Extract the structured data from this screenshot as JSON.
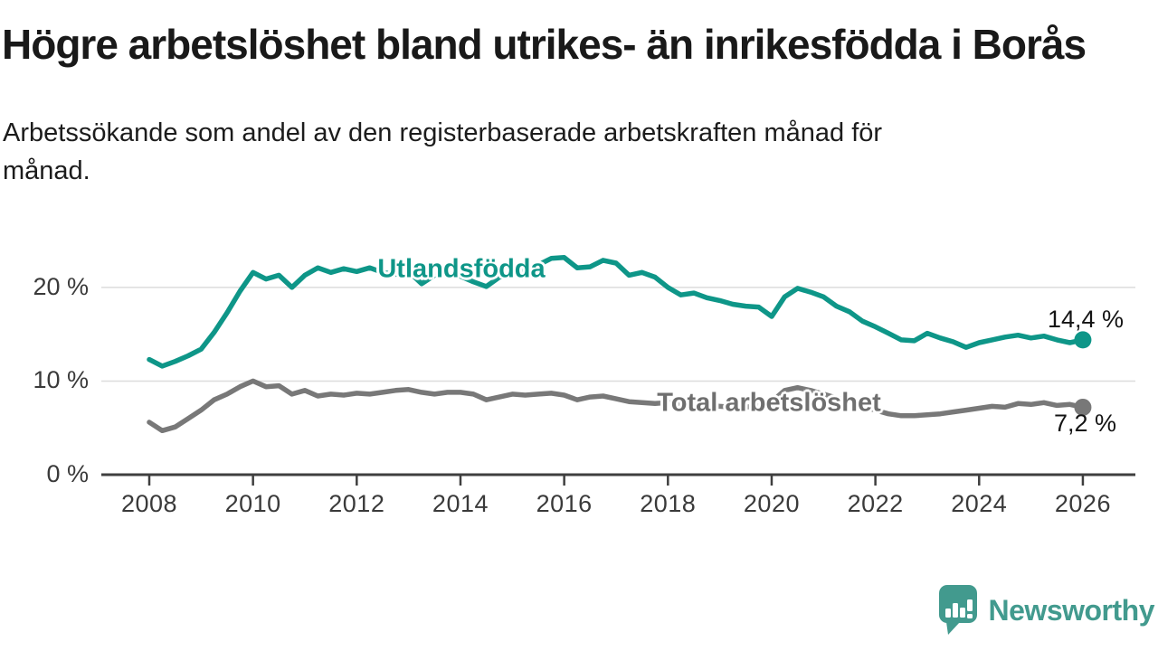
{
  "title": "Högre arbetslöshet bland utrikes- än inrikesfödda i Borås",
  "subtitle_line1": "Arbetssökande som andel av den registerbaserade arbetskraften månad för",
  "subtitle_line2": "månad.",
  "colors": {
    "foreign_born_line": "#0e9688",
    "total_line": "#787878",
    "total_label": "#6f6f6f",
    "axis": "#3f3f3f",
    "gridline": "#dcdcdc",
    "logo_teal": "#429a8e"
  },
  "chart_data": {
    "type": "line",
    "title": "Högre arbetslöshet bland utrikes- än inrikesfödda i Borås",
    "subtitle": "Arbetssökande som andel av den registerbaserade arbetskraften månad för månad.",
    "y_unit": "%",
    "ylim": [
      0,
      25
    ],
    "xlim": [
      2007.1,
      2028
    ],
    "grid": "horizontal",
    "x_ticks": [
      2008,
      2010,
      2012,
      2014,
      2016,
      2018,
      2020,
      2022,
      2024,
      2026
    ],
    "y_ticks": [
      {
        "value": 0,
        "label": "0 %"
      },
      {
        "value": 10,
        "label": "10 %"
      },
      {
        "value": 20,
        "label": "20 %"
      }
    ],
    "x": [
      2008,
      2008.25,
      2008.5,
      2008.75,
      2009,
      2009.25,
      2009.5,
      2009.75,
      2010,
      2010.25,
      2010.5,
      2010.75,
      2011,
      2011.25,
      2011.5,
      2011.75,
      2012,
      2012.25,
      2012.5,
      2012.75,
      2013,
      2013.25,
      2013.5,
      2013.75,
      2014,
      2014.25,
      2014.5,
      2014.75,
      2015,
      2015.25,
      2015.5,
      2015.75,
      2016,
      2016.25,
      2016.5,
      2016.75,
      2017,
      2017.25,
      2017.5,
      2017.75,
      2018,
      2018.25,
      2018.5,
      2018.75,
      2019,
      2019.25,
      2019.5,
      2019.75,
      2020,
      2020.25,
      2020.5,
      2020.75,
      2021,
      2021.25,
      2021.5,
      2021.75,
      2022,
      2022.25,
      2022.5,
      2022.75,
      2023,
      2023.25,
      2023.5,
      2023.75,
      2024,
      2024.25,
      2024.5,
      2024.75,
      2025,
      2025.25,
      2025.5,
      2025.75,
      2026
    ],
    "series": [
      {
        "name": "Utlandsfödda",
        "color": "#0e9688",
        "end_label": "14,4 %",
        "end_value": 14.4,
        "values": [
          12.3,
          11.6,
          12.1,
          12.7,
          13.4,
          15.2,
          17.3,
          19.6,
          21.6,
          20.9,
          21.3,
          20.0,
          21.3,
          22.1,
          21.6,
          22.0,
          21.7,
          22.1,
          21.6,
          21.4,
          21.7,
          20.4,
          21.3,
          21.5,
          21.2,
          20.6,
          20.1,
          21.1,
          21.4,
          21.9,
          22.4,
          23.1,
          23.2,
          22.1,
          22.2,
          22.9,
          22.6,
          21.3,
          21.6,
          21.1,
          20.0,
          19.2,
          19.4,
          18.9,
          18.6,
          18.2,
          18.0,
          17.9,
          16.9,
          19.0,
          19.9,
          19.5,
          19.0,
          18.0,
          17.4,
          16.4,
          15.8,
          15.1,
          14.4,
          14.3,
          15.1,
          14.6,
          14.2,
          13.6,
          14.1,
          14.4,
          14.7,
          14.9,
          14.6,
          14.8,
          14.4,
          14.1,
          14.4
        ]
      },
      {
        "name": "Total arbetslöshet",
        "color": "#787878",
        "end_label": "7,2 %",
        "end_value": 7.2,
        "values": [
          5.6,
          4.7,
          5.1,
          6.0,
          6.9,
          8.0,
          8.6,
          9.4,
          10.0,
          9.4,
          9.5,
          8.6,
          9.0,
          8.4,
          8.6,
          8.5,
          8.7,
          8.6,
          8.8,
          9.0,
          9.1,
          8.8,
          8.6,
          8.8,
          8.8,
          8.6,
          8.0,
          8.3,
          8.6,
          8.5,
          8.6,
          8.7,
          8.5,
          8.0,
          8.3,
          8.4,
          8.1,
          7.8,
          7.7,
          7.6,
          7.7,
          7.6,
          7.5,
          7.4,
          7.3,
          7.2,
          7.2,
          7.4,
          7.8,
          9.0,
          9.3,
          9.0,
          8.6,
          8.2,
          7.8,
          7.3,
          6.9,
          6.5,
          6.3,
          6.3,
          6.4,
          6.5,
          6.7,
          6.9,
          7.1,
          7.3,
          7.2,
          7.6,
          7.5,
          7.7,
          7.4,
          7.5,
          7.2
        ]
      }
    ]
  },
  "branding": {
    "logo_text": "Newsworthy",
    "logo_icon": "newsworthy-speech-bubble-bar-chart-icon"
  }
}
